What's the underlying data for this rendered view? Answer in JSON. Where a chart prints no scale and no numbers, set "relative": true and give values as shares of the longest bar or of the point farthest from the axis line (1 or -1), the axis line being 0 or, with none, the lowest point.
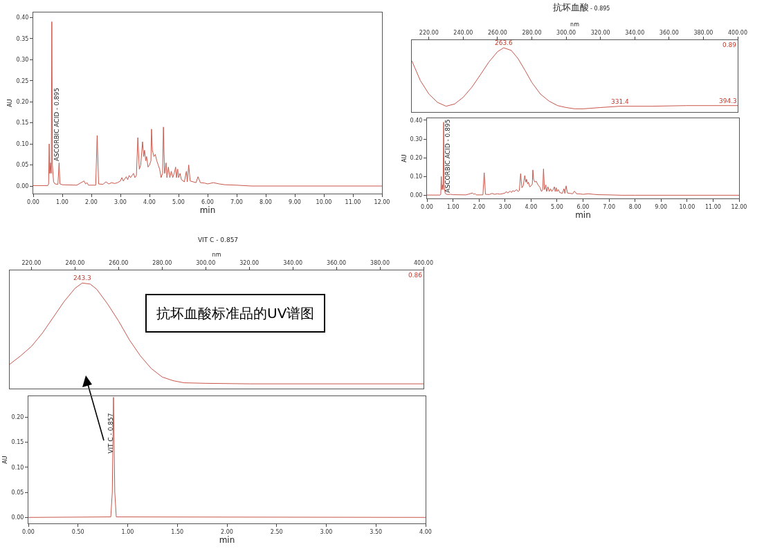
{
  "chart_data": [
    {
      "type": "line",
      "xlabel": "min",
      "ylabel": "AU",
      "color": "#c8564a",
      "x": [
        0,
        0.5,
        0.53,
        0.55,
        0.57,
        0.6,
        0.62,
        0.64,
        0.66,
        0.7,
        0.75,
        0.85,
        0.89,
        0.92,
        1.0,
        1.5,
        1.75,
        1.8,
        1.85,
        1.9,
        2.15,
        2.2,
        2.25,
        2.4,
        2.5,
        2.6,
        2.7,
        2.8,
        2.9,
        3.0,
        3.05,
        3.1,
        3.2,
        3.25,
        3.3,
        3.35,
        3.45,
        3.5,
        3.55,
        3.6,
        3.65,
        3.7,
        3.76,
        3.8,
        3.83,
        3.87,
        3.9,
        3.95,
        4.0,
        4.05,
        4.07,
        4.1,
        4.15,
        4.2,
        4.25,
        4.3,
        4.35,
        4.4,
        4.45,
        4.48,
        4.52,
        4.57,
        4.6,
        4.65,
        4.7,
        4.75,
        4.8,
        4.85,
        4.9,
        4.93,
        4.97,
        5.0,
        5.05,
        5.1,
        5.2,
        5.27,
        5.3,
        5.35,
        5.4,
        5.5,
        5.6,
        5.67,
        5.75,
        5.9,
        6.0,
        6.2,
        6.4,
        6.6,
        7.0,
        7.5,
        8,
        12
      ],
      "values": [
        0.001,
        0.001,
        0.005,
        0.1,
        0.03,
        0.055,
        0.03,
        0.39,
        0.05,
        0.01,
        0.005,
        0.004,
        0.055,
        0.005,
        0.003,
        0.002,
        0.012,
        0.005,
        0.008,
        0.002,
        0.002,
        0.12,
        0.005,
        0.004,
        0.01,
        0.005,
        0.008,
        0.006,
        0.008,
        0.012,
        0.02,
        0.012,
        0.022,
        0.015,
        0.025,
        0.02,
        0.03,
        0.02,
        0.025,
        0.115,
        0.04,
        0.05,
        0.105,
        0.07,
        0.085,
        0.06,
        0.07,
        0.045,
        0.05,
        0.06,
        0.135,
        0.085,
        0.07,
        0.075,
        0.06,
        0.05,
        0.04,
        0.02,
        0.03,
        0.14,
        0.03,
        0.055,
        0.02,
        0.045,
        0.02,
        0.035,
        0.02,
        0.03,
        0.045,
        0.02,
        0.04,
        0.02,
        0.03,
        0.015,
        0.01,
        0.035,
        0.01,
        0.05,
        0.012,
        0.01,
        0.008,
        0.022,
        0.008,
        0.007,
        0.005,
        0.008,
        0.005,
        0.003,
        0.002,
        0,
        0,
        0
      ],
      "xlim": [
        0,
        12
      ],
      "xticks": [
        {
          "value": 0,
          "label": "0.00"
        },
        {
          "value": 1,
          "label": "1.00"
        },
        {
          "value": 2,
          "label": "2.00"
        },
        {
          "value": 3,
          "label": "3.00"
        },
        {
          "value": 4,
          "label": "4.00"
        },
        {
          "value": 5,
          "label": "5.00"
        },
        {
          "value": 6,
          "label": "6.00"
        },
        {
          "value": 7,
          "label": "7.00"
        },
        {
          "value": 8,
          "label": "8.00"
        },
        {
          "value": 9,
          "label": "9.00"
        },
        {
          "value": 10,
          "label": "10.00"
        },
        {
          "value": 11,
          "label": "11.00"
        },
        {
          "value": 12,
          "label": "12.00"
        }
      ],
      "ylim": [
        -0.018,
        0.412
      ],
      "yticks": [
        {
          "value": 0,
          "label": "0.00"
        },
        {
          "value": 0.05,
          "label": "0.05"
        },
        {
          "value": 0.1,
          "label": "0.10"
        },
        {
          "value": 0.15,
          "label": "0.15"
        },
        {
          "value": 0.2,
          "label": "0.20"
        },
        {
          "value": 0.25,
          "label": "0.25"
        },
        {
          "value": 0.3,
          "label": "0.30"
        },
        {
          "value": 0.35,
          "label": "0.35"
        },
        {
          "value": 0.4,
          "label": "0.40"
        }
      ],
      "annotations": [
        {
          "text": "ASCORBIC ACID - 0.895",
          "x": 0.895,
          "y": 0.055
        }
      ]
    },
    {
      "type": "line",
      "title": "抗坏血酸",
      "subtitle": "- 0.895",
      "xlabel": "nm",
      "color": "#c8564a",
      "relative": true,
      "tick_labels": "x",
      "x": [
        210,
        215,
        220,
        225,
        230,
        235,
        240,
        245,
        250,
        255,
        260,
        263.6,
        268,
        272,
        276,
        280,
        285,
        290,
        295,
        300,
        305,
        310,
        320,
        331.4,
        350,
        370,
        394.3,
        400
      ],
      "values": [
        0.8,
        0.49,
        0.28,
        0.15,
        0.09,
        0.125,
        0.23,
        0.385,
        0.58,
        0.78,
        0.94,
        1,
        0.96,
        0.83,
        0.65,
        0.46,
        0.28,
        0.17,
        0.1,
        0.07,
        0.05,
        0.05,
        0.07,
        0.09,
        0.09,
        0.1,
        0.1,
        0.1
      ],
      "xlim": [
        210,
        400
      ],
      "xticks": [
        {
          "value": 220,
          "label": "220.00"
        },
        {
          "value": 240,
          "label": "240.00"
        },
        {
          "value": 260,
          "label": "260.00"
        },
        {
          "value": 280,
          "label": "280.00"
        },
        {
          "value": 300,
          "label": "300.00"
        },
        {
          "value": 320,
          "label": "320.00"
        },
        {
          "value": 340,
          "label": "340.00"
        },
        {
          "value": 360,
          "label": "360.00"
        },
        {
          "value": 380,
          "label": "380.00"
        },
        {
          "value": 400,
          "label": "400.00"
        }
      ],
      "annotations": [
        {
          "text": "263.6",
          "x": 263.6,
          "y": 1
        },
        {
          "text": "331.4",
          "x": 331.4,
          "y": 0.09
        },
        {
          "text": "394.3",
          "x": 394.3,
          "y": 0.1
        },
        "0.89"
      ]
    },
    {
      "type": "line",
      "xlabel": "min",
      "ylabel": "AU",
      "color": "#c8564a",
      "x": [
        0,
        0.5,
        0.53,
        0.55,
        0.57,
        0.6,
        0.62,
        0.64,
        0.66,
        0.7,
        0.75,
        0.85,
        0.89,
        0.92,
        1.0,
        1.5,
        1.75,
        1.8,
        1.85,
        1.9,
        2.15,
        2.2,
        2.25,
        2.4,
        2.5,
        2.6,
        2.7,
        2.8,
        2.9,
        3.0,
        3.05,
        3.1,
        3.2,
        3.25,
        3.3,
        3.35,
        3.45,
        3.5,
        3.55,
        3.6,
        3.65,
        3.7,
        3.76,
        3.8,
        3.83,
        3.87,
        3.9,
        3.95,
        4.0,
        4.05,
        4.07,
        4.1,
        4.15,
        4.2,
        4.25,
        4.3,
        4.35,
        4.4,
        4.45,
        4.48,
        4.52,
        4.57,
        4.6,
        4.65,
        4.7,
        4.75,
        4.8,
        4.85,
        4.9,
        4.93,
        4.97,
        5.0,
        5.05,
        5.1,
        5.2,
        5.27,
        5.3,
        5.35,
        5.4,
        5.5,
        5.6,
        5.67,
        5.75,
        5.9,
        6.0,
        6.2,
        6.4,
        6.6,
        7.0,
        7.5,
        8,
        12
      ],
      "values": [
        0.001,
        0.001,
        0.005,
        0.1,
        0.03,
        0.055,
        0.03,
        0.39,
        0.05,
        0.01,
        0.005,
        0.004,
        0.005,
        0.005,
        0.003,
        0.002,
        0.012,
        0.005,
        0.008,
        0.002,
        0.002,
        0.12,
        0.005,
        0.004,
        0.01,
        0.005,
        0.008,
        0.006,
        0.008,
        0.012,
        0.02,
        0.012,
        0.022,
        0.015,
        0.025,
        0.02,
        0.03,
        0.02,
        0.025,
        0.115,
        0.04,
        0.05,
        0.105,
        0.07,
        0.085,
        0.06,
        0.07,
        0.045,
        0.05,
        0.06,
        0.135,
        0.085,
        0.07,
        0.075,
        0.06,
        0.05,
        0.04,
        0.02,
        0.03,
        0.14,
        0.03,
        0.055,
        0.02,
        0.045,
        0.02,
        0.035,
        0.02,
        0.03,
        0.045,
        0.02,
        0.04,
        0.02,
        0.03,
        0.015,
        0.01,
        0.035,
        0.01,
        0.05,
        0.012,
        0.01,
        0.008,
        0.022,
        0.008,
        0.007,
        0.005,
        0.008,
        0.005,
        0.003,
        0.002,
        0,
        0,
        0
      ],
      "xlim": [
        0,
        12
      ],
      "xticks": [
        {
          "value": 0,
          "label": "0.00"
        },
        {
          "value": 1,
          "label": "1.00"
        },
        {
          "value": 2,
          "label": "2.00"
        },
        {
          "value": 3,
          "label": "3.00"
        },
        {
          "value": 4,
          "label": "4.00"
        },
        {
          "value": 5,
          "label": "5.00"
        },
        {
          "value": 6,
          "label": "6.00"
        },
        {
          "value": 7,
          "label": "7.00"
        },
        {
          "value": 8,
          "label": "8.00"
        },
        {
          "value": 9,
          "label": "9.00"
        },
        {
          "value": 10,
          "label": "10.00"
        },
        {
          "value": 11,
          "label": "11.00"
        },
        {
          "value": 12,
          "label": "12.00"
        }
      ],
      "ylim": [
        -0.017,
        0.411
      ],
      "yticks": [
        {
          "value": 0,
          "label": "0.00"
        },
        {
          "value": 0.1,
          "label": "0.10"
        },
        {
          "value": 0.2,
          "label": "0.20"
        },
        {
          "value": 0.3,
          "label": "0.30"
        },
        {
          "value": 0.4,
          "label": "0.40"
        }
      ],
      "annotations": [
        {
          "text": "ASCORBIC ACID - 0.895",
          "x": 0.895,
          "y": 0.005
        }
      ]
    },
    {
      "type": "line",
      "title": "VIT C - 0.857",
      "xlabel": "nm",
      "color": "#c8564a",
      "relative": true,
      "tick_labels": "x",
      "x": [
        210,
        215,
        220,
        225,
        230,
        235,
        240,
        243.3,
        247,
        250,
        255,
        260,
        265,
        270,
        275,
        280,
        285,
        290,
        300,
        320,
        400
      ],
      "values": [
        0.23,
        0.31,
        0.4,
        0.525,
        0.675,
        0.825,
        0.95,
        1,
        0.99,
        0.94,
        0.8,
        0.64,
        0.46,
        0.31,
        0.19,
        0.11,
        0.075,
        0.055,
        0.05,
        0.045,
        0.045
      ],
      "xlim": [
        210,
        400
      ],
      "xticks": [
        {
          "value": 220,
          "label": "220.00"
        },
        {
          "value": 240,
          "label": "240.00"
        },
        {
          "value": 260,
          "label": "260.00"
        },
        {
          "value": 280,
          "label": "280.00"
        },
        {
          "value": 300,
          "label": "300.00"
        },
        {
          "value": 320,
          "label": "320.00"
        },
        {
          "value": 340,
          "label": "340.00"
        },
        {
          "value": 360,
          "label": "360.00"
        },
        {
          "value": 380,
          "label": "380.00"
        },
        {
          "value": 400,
          "label": "400.00"
        }
      ],
      "annotations": [
        {
          "text": "243.3",
          "x": 243.3,
          "y": 1
        },
        "0.86",
        "抗坏血酸标准品的UV谱图"
      ]
    },
    {
      "type": "line",
      "xlabel": "min",
      "ylabel": "AU",
      "color": "#c8564a",
      "x": [
        0,
        0.83,
        0.845,
        0.857,
        0.87,
        0.885,
        4
      ],
      "values": [
        0,
        0.001,
        0.05,
        0.24,
        0.05,
        0.001,
        0
      ],
      "xlim": [
        0,
        4
      ],
      "xticks": [
        {
          "value": 0,
          "label": "0.00"
        },
        {
          "value": 0.5,
          "label": "0.50"
        },
        {
          "value": 1,
          "label": "1.00"
        },
        {
          "value": 1.5,
          "label": "1.50"
        },
        {
          "value": 2,
          "label": "2.00"
        },
        {
          "value": 2.5,
          "label": "2.50"
        },
        {
          "value": 3,
          "label": "3.00"
        },
        {
          "value": 3.5,
          "label": "3.50"
        },
        {
          "value": 4,
          "label": "4.00"
        }
      ],
      "ylim": [
        -0.012,
        0.242
      ],
      "yticks": [
        {
          "value": 0,
          "label": "0.00"
        },
        {
          "value": 0.05,
          "label": "0.05"
        },
        {
          "value": 0.1,
          "label": "0.10"
        },
        {
          "value": 0.15,
          "label": "0.15"
        },
        {
          "value": 0.2,
          "label": "0.20"
        }
      ],
      "annotations": [
        {
          "text": "VIT C - 0.857",
          "x": 0.857,
          "y": 0.125
        }
      ]
    }
  ]
}
